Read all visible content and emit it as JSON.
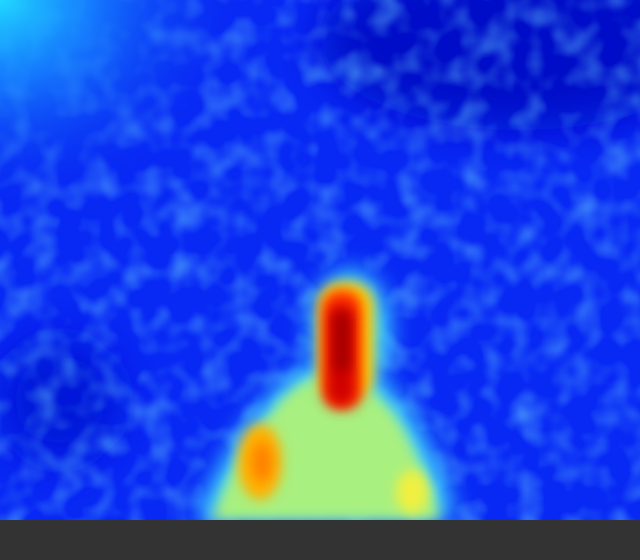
{
  "image": {
    "description_kind": "false-color thermal/intensity heatmap",
    "colormap": [
      "#0000aa",
      "#0010ff",
      "#2080ff",
      "#40e8ff",
      "#b0ff60",
      "#ffe000",
      "#ff8000",
      "#ff0000",
      "#c00000"
    ]
  },
  "colors": {
    "background_low": "#0820f0",
    "hotspot_core": "#d00000",
    "warm_region": "#a8f070",
    "bottom_bar": "#333333"
  }
}
